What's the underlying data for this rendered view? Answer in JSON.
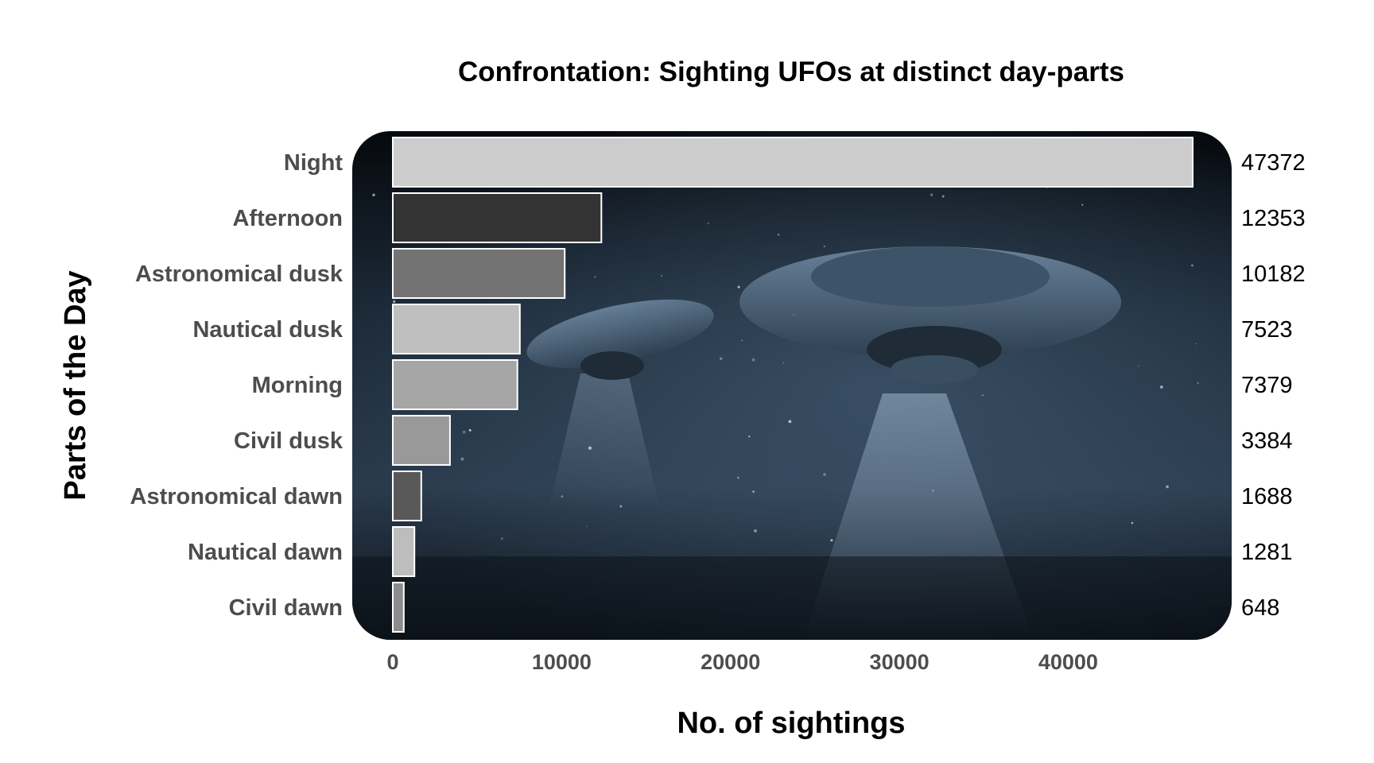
{
  "chart_data": {
    "type": "bar",
    "orientation": "horizontal",
    "title": "Confrontation: Sighting UFOs at distinct day-parts",
    "xlabel": "No. of sightings",
    "ylabel": "Parts of the Day",
    "xlim": [
      0,
      47372
    ],
    "xticks": [
      "0",
      "10000",
      "20000",
      "30000",
      "40000"
    ],
    "categories": [
      "Night",
      "Afternoon",
      "Astronomical dusk",
      "Nautical dusk",
      "Morning",
      "Civil dusk",
      "Astronomical dawn",
      "Nautical dawn",
      "Civil dawn"
    ],
    "values": [
      47372,
      12353,
      10182,
      7523,
      7379,
      3384,
      1688,
      1281,
      648
    ],
    "value_labels": [
      "47372",
      "12353",
      "10182",
      "7523",
      "7379",
      "3384",
      "1688",
      "1281",
      "648"
    ],
    "bar_colors": [
      "#cccccc",
      "#333333",
      "#737373",
      "#bfbfbf",
      "#a6a6a6",
      "#999999",
      "#595959",
      "#bdbdbd",
      "#8c8c8c"
    ],
    "bar_outline": "#ffffff",
    "grid": false,
    "legend": "none",
    "background": "night-sky-ufo-image"
  }
}
